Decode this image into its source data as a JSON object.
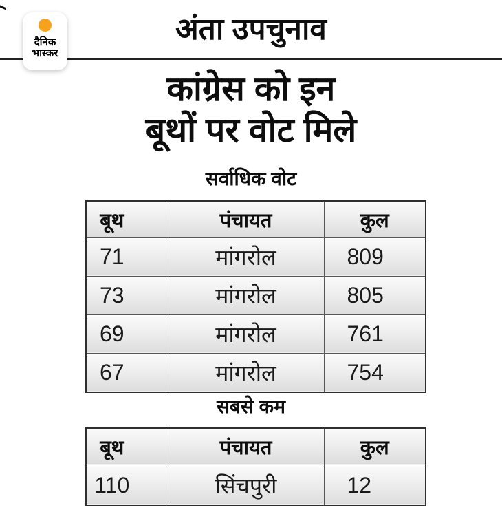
{
  "brand": {
    "name_line1": "दैनिक",
    "name_line2": "भास्कर",
    "dot_color": "#F6A21D"
  },
  "header": {
    "kicker": "अंता उपचुनाव",
    "title_line1": "कांग्रेस को इन",
    "title_line2": "बूथों पर वोट मिले"
  },
  "chart_data": [
    {
      "type": "table",
      "title": "सर्वाधिक वोट",
      "columns": [
        "बूथ",
        "पंचायत",
        "कुल"
      ],
      "rows": [
        [
          71,
          "मांगरोल",
          809
        ],
        [
          73,
          "मांगरोल",
          805
        ],
        [
          69,
          "मांगरोल",
          761
        ],
        [
          67,
          "मांगरोल",
          754
        ]
      ]
    },
    {
      "type": "table",
      "title": "सबसे कम",
      "columns": [
        "बूथ",
        "पंचायत",
        "कुल"
      ],
      "rows": [
        [
          110,
          "सिंचपुरी",
          12
        ]
      ]
    }
  ],
  "colors": {
    "accent_orange": "#F6A21D",
    "rule": "#222222",
    "table_outer_border": "#2f2f2f",
    "cell_border": "#565656",
    "cell_bg_top": "#fafafa",
    "cell_bg_bottom": "#dcdcdc",
    "text": "#111111",
    "background": "#ffffff"
  }
}
